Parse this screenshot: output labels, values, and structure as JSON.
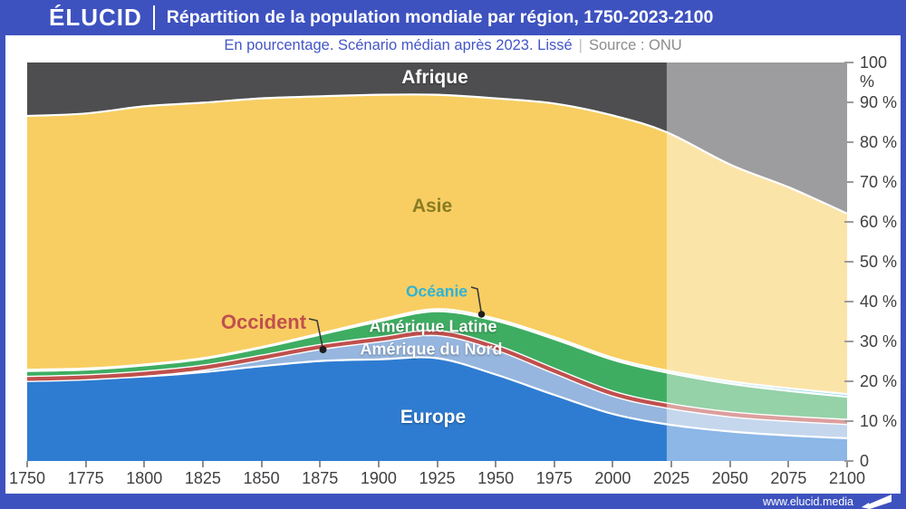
{
  "header": {
    "logo": "ÉLUCID",
    "title": "Répartition de la population mondiale par région, 1750-2023-2100"
  },
  "subtitle": {
    "text": "En pourcentage. Scénario médian après 2023. Lissé",
    "separator": "|",
    "source": "Source : ONU"
  },
  "footer": {
    "url": "www.elucid.media"
  },
  "colors": {
    "brand_blue": "#3E52BF",
    "projection_overlay": "rgba(255,255,255,0.45)",
    "boundary_white": "#FFFFFF",
    "occident_red": "#C0504D"
  },
  "chart_data": {
    "type": "area",
    "stacked": true,
    "unit": "percent",
    "grid": false,
    "legend": "labels-on-areas",
    "xlim": [
      1750,
      2100
    ],
    "ylim": [
      0,
      100
    ],
    "projection_start": 2023,
    "x": [
      1750,
      1775,
      1800,
      1825,
      1850,
      1875,
      1900,
      1925,
      1950,
      1975,
      2000,
      2023,
      2050,
      2075,
      2100
    ],
    "series": [
      {
        "name": "Europe",
        "color": "#2E7CD1",
        "values": [
          20.3,
          20.6,
          21.2,
          22.3,
          23.8,
          25.1,
          25.5,
          25.8,
          21.7,
          16.6,
          11.8,
          9.2,
          7.4,
          6.4,
          5.7
        ]
      },
      {
        "name": "Amérique du Nord",
        "color": "#96B6DF",
        "values": [
          0.3,
          0.4,
          0.7,
          1.1,
          2.1,
          3.5,
          5.0,
          6.3,
          6.8,
          6.0,
          5.1,
          4.7,
          4.3,
          4.2,
          4.1
        ]
      },
      {
        "name": "Amérique Latine",
        "color": "#3EAD62",
        "values": [
          2.0,
          1.9,
          2.1,
          2.2,
          2.5,
          3.1,
          4.5,
          5.5,
          6.7,
          8.0,
          8.5,
          8.3,
          7.7,
          7.0,
          6.3
        ]
      },
      {
        "name": "Océanie",
        "color": "#44BDD9",
        "values": [
          0.3,
          0.3,
          0.2,
          0.2,
          0.2,
          0.3,
          0.4,
          0.5,
          0.5,
          0.5,
          0.5,
          0.5,
          0.6,
          0.65,
          0.7
        ]
      },
      {
        "name": "Asie",
        "color": "#F8CE62",
        "values": [
          63.7,
          64.0,
          64.8,
          64.1,
          62.4,
          59.5,
          56.5,
          53.8,
          55.3,
          58.6,
          60.8,
          59.8,
          54.4,
          50.45,
          45.3
        ]
      },
      {
        "name": "Afrique",
        "color": "#4E4E50",
        "values": [
          13.4,
          12.8,
          11.0,
          10.1,
          9.0,
          8.5,
          8.1,
          8.1,
          9.0,
          10.3,
          13.3,
          17.5,
          25.6,
          31.3,
          37.9
        ]
      }
    ],
    "occident_line": {
      "label": "Occident",
      "color": "#C0504D",
      "top_of_series": "Amérique du Nord"
    },
    "region_labels": {
      "afrique": "Afrique",
      "asie": "Asie",
      "oceanie": "Océanie",
      "amerique_latine": "Amérique Latine",
      "amerique_du_nord": "Amérique du Nord",
      "europe": "Europe",
      "occident": "Occident"
    },
    "x_ticks": [
      1750,
      1775,
      1800,
      1825,
      1850,
      1875,
      1900,
      1925,
      1950,
      1975,
      2000,
      2025,
      2050,
      2075,
      2100
    ],
    "y_ticks": [
      {
        "v": 100,
        "label": "100 %"
      },
      {
        "v": 90,
        "label": "90 %"
      },
      {
        "v": 80,
        "label": "80 %"
      },
      {
        "v": 70,
        "label": "70 %"
      },
      {
        "v": 60,
        "label": "60 %"
      },
      {
        "v": 50,
        "label": "50 %"
      },
      {
        "v": 40,
        "label": "40 %"
      },
      {
        "v": 30,
        "label": "30 %"
      },
      {
        "v": 20,
        "label": "20 %"
      },
      {
        "v": 10,
        "label": "10 %"
      },
      {
        "v": 0,
        "label": "0"
      }
    ]
  }
}
